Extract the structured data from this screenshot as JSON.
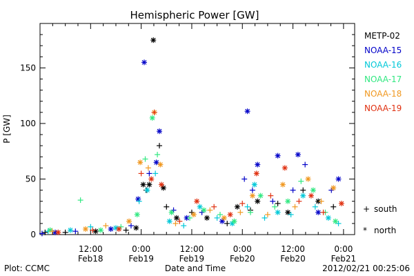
{
  "chart_data": {
    "type": "scatter",
    "title": "Hemispheric Power [GW]",
    "xlabel": "Date and Time",
    "ylabel": "P [GW]",
    "ylim": [
      0,
      190
    ],
    "xlim": [
      0,
      3.11
    ],
    "yticks": [
      0,
      50,
      100,
      150
    ],
    "x_major_ticks": [
      {
        "pos": 0.5,
        "time": "12:00",
        "date": "Feb18"
      },
      {
        "pos": 1.0,
        "time": "0:00",
        "date": "Feb19"
      },
      {
        "pos": 1.5,
        "time": "12:00",
        "date": "Feb19"
      },
      {
        "pos": 2.0,
        "time": "0:00",
        "date": "Feb20"
      },
      {
        "pos": 2.5,
        "time": "12:00",
        "date": "Feb20"
      },
      {
        "pos": 3.0,
        "time": "0:00",
        "date": "Feb21"
      }
    ],
    "marker_legend": [
      {
        "symbol": "+",
        "label": "south"
      },
      {
        "symbol": "*",
        "label": "north"
      }
    ],
    "series": [
      {
        "name": "METP-02",
        "color": "#000000",
        "points": [
          [
            0.05,
            2,
            "+"
          ],
          [
            0.25,
            2,
            "+"
          ],
          [
            0.55,
            3,
            "*"
          ],
          [
            0.85,
            4,
            "+"
          ],
          [
            0.95,
            6,
            "*"
          ],
          [
            1.02,
            45,
            "*"
          ],
          [
            1.05,
            40,
            "+"
          ],
          [
            1.08,
            45,
            "*"
          ],
          [
            1.12,
            175,
            "*"
          ],
          [
            1.18,
            80,
            "+"
          ],
          [
            1.22,
            42,
            "*"
          ],
          [
            1.25,
            25,
            "+"
          ],
          [
            1.35,
            15,
            "*"
          ],
          [
            1.5,
            20,
            "+"
          ],
          [
            1.65,
            15,
            "*"
          ],
          [
            1.85,
            10,
            "+"
          ],
          [
            1.95,
            25,
            "*"
          ],
          [
            2.08,
            22,
            "+"
          ],
          [
            2.15,
            30,
            "*"
          ],
          [
            2.35,
            28,
            "+"
          ],
          [
            2.45,
            20,
            "*"
          ],
          [
            2.6,
            40,
            "+"
          ],
          [
            2.75,
            30,
            "*"
          ],
          [
            2.9,
            25,
            "+"
          ]
        ]
      },
      {
        "name": "NOAA-15",
        "color": "#0000c8",
        "points": [
          [
            0.02,
            1,
            "+"
          ],
          [
            0.15,
            2,
            "*"
          ],
          [
            0.35,
            3,
            "+"
          ],
          [
            0.7,
            5,
            "*"
          ],
          [
            0.9,
            8,
            "+"
          ],
          [
            0.97,
            32,
            "*"
          ],
          [
            1.03,
            155,
            "*"
          ],
          [
            1.08,
            55,
            "+"
          ],
          [
            1.15,
            65,
            "*"
          ],
          [
            1.18,
            93,
            "*"
          ],
          [
            1.32,
            22,
            "+"
          ],
          [
            1.45,
            15,
            "*"
          ],
          [
            1.6,
            20,
            "+"
          ],
          [
            1.8,
            12,
            "*"
          ],
          [
            2.02,
            50,
            "+"
          ],
          [
            2.05,
            111,
            "*"
          ],
          [
            2.1,
            40,
            "+"
          ],
          [
            2.15,
            63,
            "*"
          ],
          [
            2.3,
            30,
            "+"
          ],
          [
            2.35,
            71,
            "*"
          ],
          [
            2.5,
            40,
            "+"
          ],
          [
            2.55,
            72,
            "*"
          ],
          [
            2.62,
            63,
            "+"
          ],
          [
            2.75,
            20,
            "*"
          ],
          [
            2.88,
            40,
            "+"
          ],
          [
            2.95,
            50,
            "*"
          ]
        ]
      },
      {
        "name": "NOAA-16",
        "color": "#00c8d8",
        "points": [
          [
            0.08,
            3,
            "+"
          ],
          [
            0.3,
            4,
            "*"
          ],
          [
            0.5,
            7,
            "+"
          ],
          [
            0.75,
            6,
            "*"
          ],
          [
            0.98,
            30,
            "+"
          ],
          [
            1.06,
            40,
            "*"
          ],
          [
            1.14,
            55,
            "+"
          ],
          [
            1.28,
            12,
            "*"
          ],
          [
            1.42,
            8,
            "+"
          ],
          [
            1.58,
            25,
            "*"
          ],
          [
            1.75,
            15,
            "+"
          ],
          [
            1.9,
            10,
            "*"
          ],
          [
            2.05,
            25,
            "+"
          ],
          [
            2.12,
            45,
            "*"
          ],
          [
            2.22,
            15,
            "+"
          ],
          [
            2.35,
            20,
            "*"
          ],
          [
            2.48,
            18,
            "+"
          ],
          [
            2.6,
            35,
            "*"
          ],
          [
            2.72,
            25,
            "+"
          ],
          [
            2.85,
            15,
            "*"
          ],
          [
            2.95,
            10,
            "+"
          ]
        ]
      },
      {
        "name": "NOAA-17",
        "color": "#30e880",
        "points": [
          [
            0.1,
            4,
            "*"
          ],
          [
            0.4,
            31,
            "+"
          ],
          [
            0.6,
            4,
            "*"
          ],
          [
            0.8,
            7,
            "+"
          ],
          [
            0.96,
            18,
            "*"
          ],
          [
            1.04,
            68,
            "+"
          ],
          [
            1.11,
            105,
            "*"
          ],
          [
            1.16,
            72,
            "+"
          ],
          [
            1.3,
            20,
            "*"
          ],
          [
            1.48,
            15,
            "+"
          ],
          [
            1.62,
            22,
            "*"
          ],
          [
            1.78,
            18,
            "+"
          ],
          [
            1.92,
            12,
            "*"
          ],
          [
            2.08,
            20,
            "+"
          ],
          [
            2.18,
            35,
            "*"
          ],
          [
            2.32,
            25,
            "+"
          ],
          [
            2.45,
            30,
            "*"
          ],
          [
            2.58,
            48,
            "+"
          ],
          [
            2.7,
            40,
            "*"
          ],
          [
            2.82,
            20,
            "+"
          ],
          [
            2.92,
            12,
            "*"
          ]
        ]
      },
      {
        "name": "NOAA-18",
        "color": "#f09820",
        "points": [
          [
            0.12,
            3,
            "+"
          ],
          [
            0.45,
            5,
            "*"
          ],
          [
            0.65,
            8,
            "+"
          ],
          [
            0.88,
            12,
            "*"
          ],
          [
            0.99,
            65,
            "*"
          ],
          [
            1.07,
            60,
            "+"
          ],
          [
            1.13,
            110,
            "*"
          ],
          [
            1.19,
            63,
            "*"
          ],
          [
            1.34,
            10,
            "+"
          ],
          [
            1.52,
            18,
            "*"
          ],
          [
            1.68,
            22,
            "+"
          ],
          [
            1.82,
            15,
            "*"
          ],
          [
            1.98,
            20,
            "+"
          ],
          [
            2.1,
            35,
            "*"
          ],
          [
            2.25,
            18,
            "+"
          ],
          [
            2.4,
            45,
            "*"
          ],
          [
            2.52,
            25,
            "+"
          ],
          [
            2.65,
            50,
            "*"
          ],
          [
            2.78,
            30,
            "+"
          ],
          [
            2.9,
            42,
            "*"
          ]
        ]
      },
      {
        "name": "NOAA-19",
        "color": "#e03010",
        "points": [
          [
            0.18,
            2,
            "*"
          ],
          [
            0.52,
            4,
            "+"
          ],
          [
            0.78,
            5,
            "*"
          ],
          [
            1.0,
            55,
            "+"
          ],
          [
            1.1,
            50,
            "*"
          ],
          [
            1.13,
            110,
            "+"
          ],
          [
            1.2,
            45,
            "*"
          ],
          [
            1.38,
            12,
            "+"
          ],
          [
            1.55,
            30,
            "*"
          ],
          [
            1.72,
            25,
            "+"
          ],
          [
            1.88,
            18,
            "*"
          ],
          [
            2.0,
            28,
            "+"
          ],
          [
            2.14,
            55,
            "*"
          ],
          [
            2.28,
            35,
            "+"
          ],
          [
            2.42,
            60,
            "*"
          ],
          [
            2.56,
            30,
            "+"
          ],
          [
            2.68,
            35,
            "*"
          ],
          [
            2.8,
            20,
            "+"
          ],
          [
            2.98,
            28,
            "*"
          ]
        ]
      }
    ]
  },
  "footer": {
    "left": "Plot: CCMC",
    "right": "2012/02/21 00:25:06"
  }
}
